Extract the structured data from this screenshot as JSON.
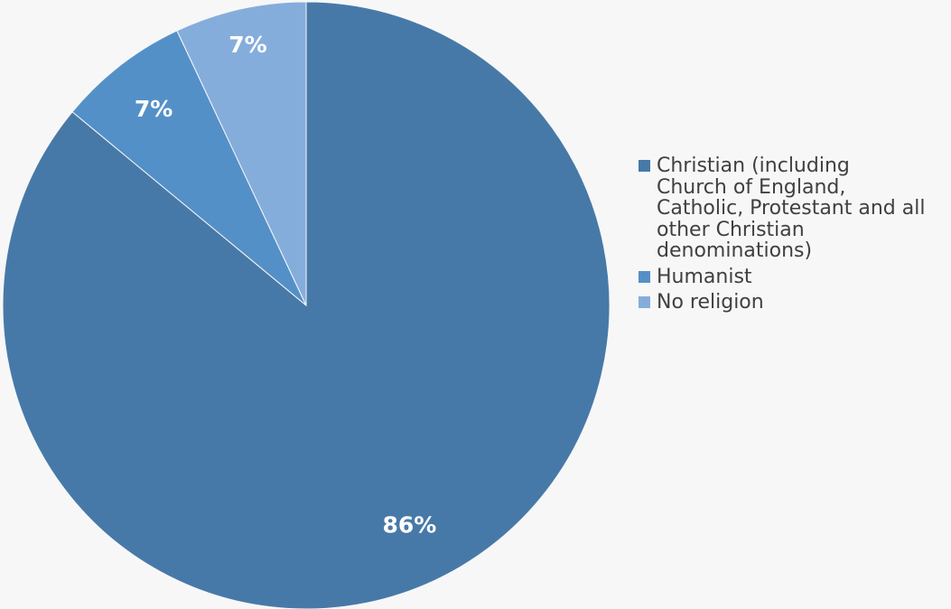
{
  "chart_data": {
    "type": "pie",
    "categories": [
      "Christian (including Church of England, Catholic, Protestant and all other Christian denominations)",
      "Humanist",
      "No religion"
    ],
    "values": [
      86,
      7,
      7
    ],
    "data_labels": [
      "86%",
      "7%",
      "7%"
    ],
    "colors": [
      "#4779a8",
      "#5490c8",
      "#85addb"
    ],
    "legend_position": "right",
    "start_angle": "12 o'clock",
    "direction": "clockwise",
    "title": ""
  },
  "legend": {
    "items": [
      {
        "label_lines": [
          "Christian (including",
          "Church of England,",
          "Catholic, Protestant and all",
          "other Christian",
          "denominations)"
        ],
        "color": "#4779a8"
      },
      {
        "label_lines": [
          "Humanist"
        ],
        "color": "#5490c8"
      },
      {
        "label_lines": [
          "No religion"
        ],
        "color": "#85addb"
      }
    ]
  }
}
